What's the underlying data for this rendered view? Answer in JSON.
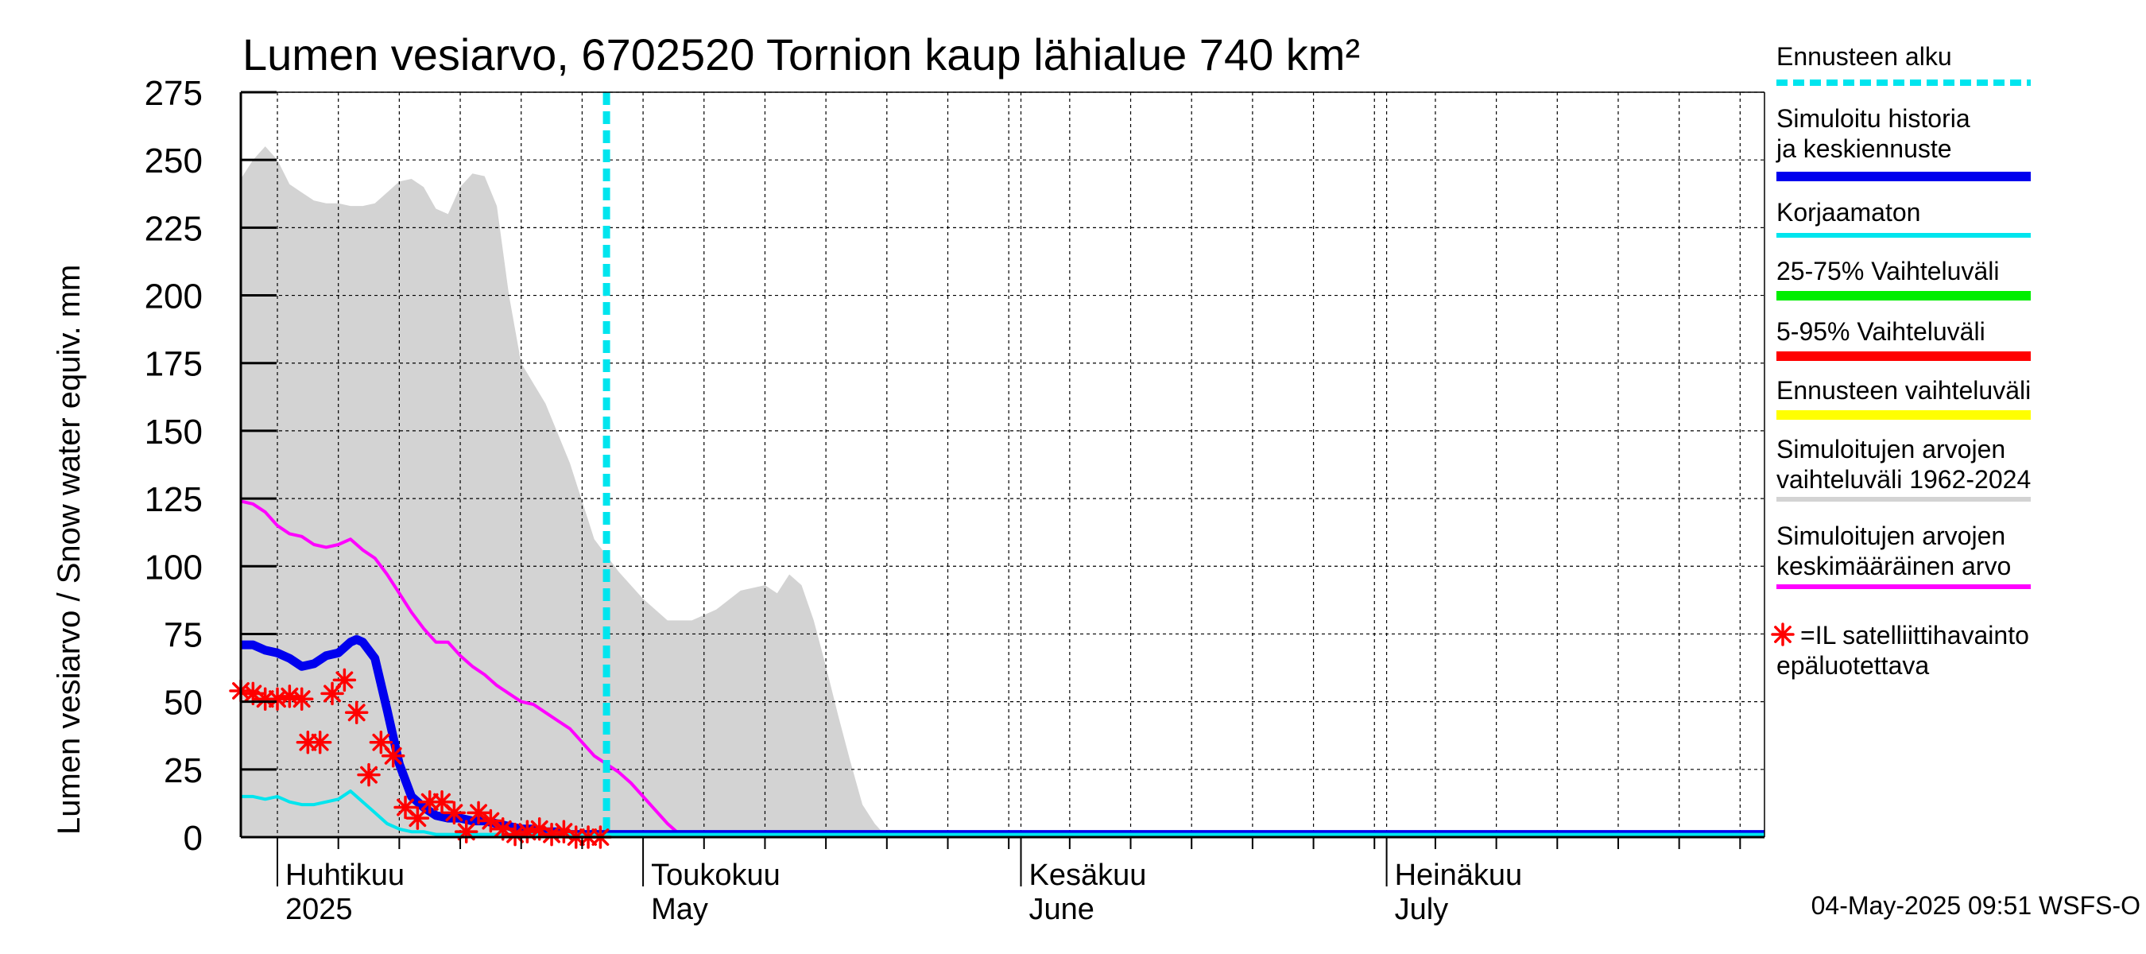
{
  "chart_data": {
    "type": "line",
    "title": "Lumen vesiarvo, 6702520 Tornion kaup lähialue 740 km²",
    "ylabel": "Lumen vesiarvo / Snow water equiv.    mm",
    "ylim": [
      0,
      275
    ],
    "yticks": [
      0,
      25,
      50,
      75,
      100,
      125,
      150,
      175,
      200,
      225,
      250,
      275
    ],
    "xlim": [
      -3,
      122
    ],
    "x_unit": "days since 1 April 2025",
    "month_ticks": [
      {
        "x": 0,
        "fi": "Huhtikuu",
        "en": "2025"
      },
      {
        "x": 30,
        "fi": "Toukokuu",
        "en": "May"
      },
      {
        "x": 61,
        "fi": "Kesäkuu",
        "en": "June"
      },
      {
        "x": 91,
        "fi": "Heinäkuu",
        "en": "July"
      }
    ],
    "forecast_start": 27,
    "series": [
      {
        "name": "Simuloitujen arvojen vaihteluväli 1962-2024",
        "kind": "band",
        "color": "#d3d3d3",
        "x": [
          -3,
          -2,
          -1,
          0,
          1,
          2,
          3,
          4,
          5,
          6,
          7,
          8,
          9,
          10,
          11,
          12,
          13,
          14,
          15,
          16,
          17,
          18,
          19,
          20,
          22,
          24,
          26,
          28,
          30,
          32,
          34,
          36,
          38,
          40,
          41,
          42,
          43,
          44,
          45,
          46,
          47,
          48,
          49,
          50
        ],
        "upper": [
          243,
          250,
          255,
          250,
          241,
          238,
          235,
          234,
          234,
          233,
          233,
          234,
          238,
          242,
          243,
          240,
          232,
          230,
          240,
          245,
          244,
          233,
          200,
          175,
          160,
          138,
          110,
          98,
          88,
          80,
          80,
          84,
          91,
          93,
          90,
          97,
          93,
          80,
          63,
          45,
          28,
          12,
          5,
          0
        ],
        "lower": [
          0,
          0,
          0,
          0,
          0,
          0,
          0,
          0,
          0,
          0,
          0,
          0,
          0,
          0,
          0,
          0,
          0,
          0,
          0,
          0,
          0,
          0,
          0,
          0,
          0,
          0,
          0,
          0,
          0,
          0,
          0,
          0,
          0,
          0,
          0,
          0,
          0,
          0,
          0,
          0,
          0,
          0,
          0,
          0
        ]
      },
      {
        "name": "Simuloitujen arvojen keskimääräinen arvo",
        "kind": "line",
        "color": "#ff00ff",
        "width": 4,
        "x": [
          -3,
          -2,
          -1,
          0,
          1,
          2,
          3,
          4,
          5,
          6,
          7,
          8,
          9,
          10,
          11,
          12,
          13,
          14,
          15,
          16,
          17,
          18,
          19,
          20,
          21,
          22,
          23,
          24,
          25,
          26,
          27,
          28,
          29,
          30,
          31,
          32,
          33,
          122
        ],
        "y": [
          124,
          123,
          120,
          115,
          112,
          111,
          108,
          107,
          108,
          110,
          106,
          103,
          97,
          90,
          83,
          77,
          72,
          72,
          67,
          63,
          60,
          56,
          53,
          50,
          49,
          46,
          43,
          40,
          35,
          30,
          27,
          24,
          20,
          15,
          10,
          5,
          1,
          1
        ]
      },
      {
        "name": "Simuloitu historia ja keskiennuste",
        "kind": "line",
        "color": "#0000ee",
        "width": 11,
        "x": [
          -3,
          -2,
          -1,
          0,
          1,
          2,
          3,
          4,
          5,
          6,
          6.5,
          7,
          8,
          9,
          10,
          11,
          12,
          13,
          14,
          15,
          16,
          17,
          18,
          19,
          20,
          21,
          22,
          23,
          24,
          25,
          26,
          27,
          28,
          30,
          122
        ],
        "y": [
          71,
          71,
          69,
          68,
          66,
          63,
          64,
          67,
          68,
          72,
          73,
          72,
          66,
          47,
          27,
          15,
          11,
          8,
          7,
          7,
          6,
          6,
          5,
          4,
          3,
          3,
          2,
          2,
          1,
          1,
          1,
          1,
          1,
          1,
          1
        ]
      },
      {
        "name": "Korjaamaton",
        "kind": "line",
        "color": "#00e5ee",
        "width": 4,
        "x": [
          -3,
          -2,
          -1,
          0,
          1,
          2,
          3,
          4,
          5,
          6,
          7,
          8,
          9,
          10,
          11,
          12,
          13,
          14,
          15,
          16,
          17,
          18,
          20,
          22,
          24,
          26,
          28,
          30,
          122
        ],
        "y": [
          15,
          15,
          14,
          15,
          13,
          12,
          12,
          13,
          14,
          17,
          13,
          9,
          5,
          3,
          2,
          2,
          1,
          1,
          1,
          1,
          1,
          1,
          1,
          1,
          1,
          1,
          1,
          1,
          1
        ]
      }
    ],
    "satellite_observations": {
      "name": "=IL satelliittihavainto epäluotettava",
      "color": "#ff0000",
      "x": [
        -3,
        -2,
        -1,
        0,
        1,
        2,
        2.5,
        3.5,
        4.5,
        5.5,
        6.5,
        7.5,
        8.5,
        9.5,
        10.5,
        11.5,
        12.5,
        13.5,
        14.5,
        15.5,
        16.5,
        17.5,
        18.5,
        19.5,
        20.5,
        21.5,
        22.5,
        23.5,
        24.5,
        25.5,
        26.5
      ],
      "y": [
        54,
        53,
        51,
        51,
        52,
        51,
        35,
        35,
        53,
        58,
        46,
        23,
        35,
        30,
        11,
        7,
        13,
        13,
        9,
        2,
        9,
        6,
        3,
        1,
        2,
        3,
        1,
        2,
        0,
        0,
        0
      ]
    },
    "legend": [
      {
        "label": "Ennusteen alku",
        "color": "#00e5ee",
        "style": "dashed"
      },
      {
        "label": "Simuloitu historia ja keskiennuste",
        "color": "#0000ee",
        "style": "thick"
      },
      {
        "label": "Korjaamaton",
        "color": "#00e5ee",
        "style": "solid"
      },
      {
        "label": "25-75% Vaihteluväli",
        "color": "#00ee00",
        "style": "solid"
      },
      {
        "label": "5-95% Vaihteluväli",
        "color": "#ff0000",
        "style": "solid"
      },
      {
        "label": "Ennusteen vaihteluväli",
        "color": "#ffff00",
        "style": "solid"
      },
      {
        "label": "Simuloitujen arvojen vaihteluväli 1962-2024",
        "color": "#d3d3d3",
        "style": "solid"
      },
      {
        "label": "Simuloitujen arvojen keskimääräinen arvo",
        "color": "#ff00ff",
        "style": "solid"
      },
      {
        "label": "=IL satelliittihavainto epäluotettava",
        "color": "#ff0000",
        "style": "marker"
      }
    ],
    "legend_position": "right",
    "grid": true
  },
  "footer": {
    "timestamp": "04-May-2025 09:51 WSFS-O"
  }
}
